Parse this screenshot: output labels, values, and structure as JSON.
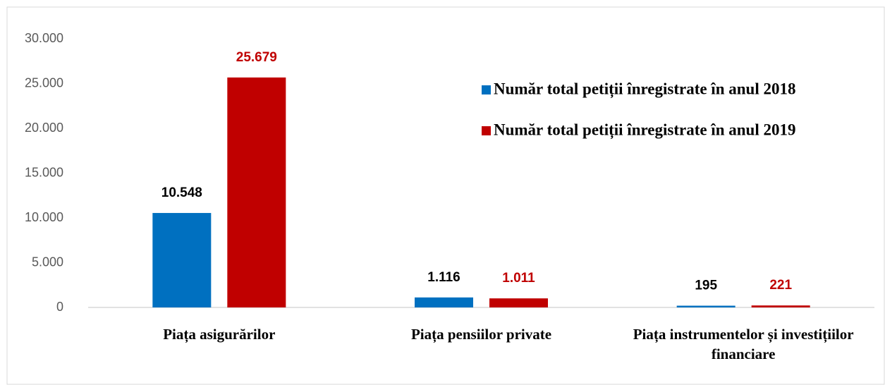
{
  "chart_data": {
    "type": "bar",
    "categories": [
      "Piața asigurărilor",
      "Piața pensiilor  private",
      "Piața instrumentelor  și investițiilor financiare"
    ],
    "series": [
      {
        "name": "Număr total petiții înregistrate în anul 2018",
        "color": "#0070c0",
        "label_color": "#000000",
        "values": [
          10548,
          1116,
          195
        ],
        "value_labels": [
          "10.548",
          "1.116",
          "195"
        ]
      },
      {
        "name": "Număr total petiții înregistrate în anul 2019",
        "color": "#c00000",
        "label_color": "#c00000",
        "values": [
          25679,
          1011,
          221
        ],
        "value_labels": [
          "25.679",
          "1.011",
          "221"
        ]
      }
    ],
    "ylim": [
      0,
      30000
    ],
    "yticks": [
      0,
      {
        "value": 5000,
        "label": "5.000"
      },
      {
        "value": 10000,
        "label": "10.000"
      },
      {
        "value": 15000,
        "label": "15.000"
      },
      {
        "value": 20000,
        "label": "20.000"
      },
      {
        "value": 25000,
        "label": "25.000"
      },
      {
        "value": 30000,
        "label": "30.000"
      }
    ],
    "grid": false,
    "legend": "upper right"
  }
}
